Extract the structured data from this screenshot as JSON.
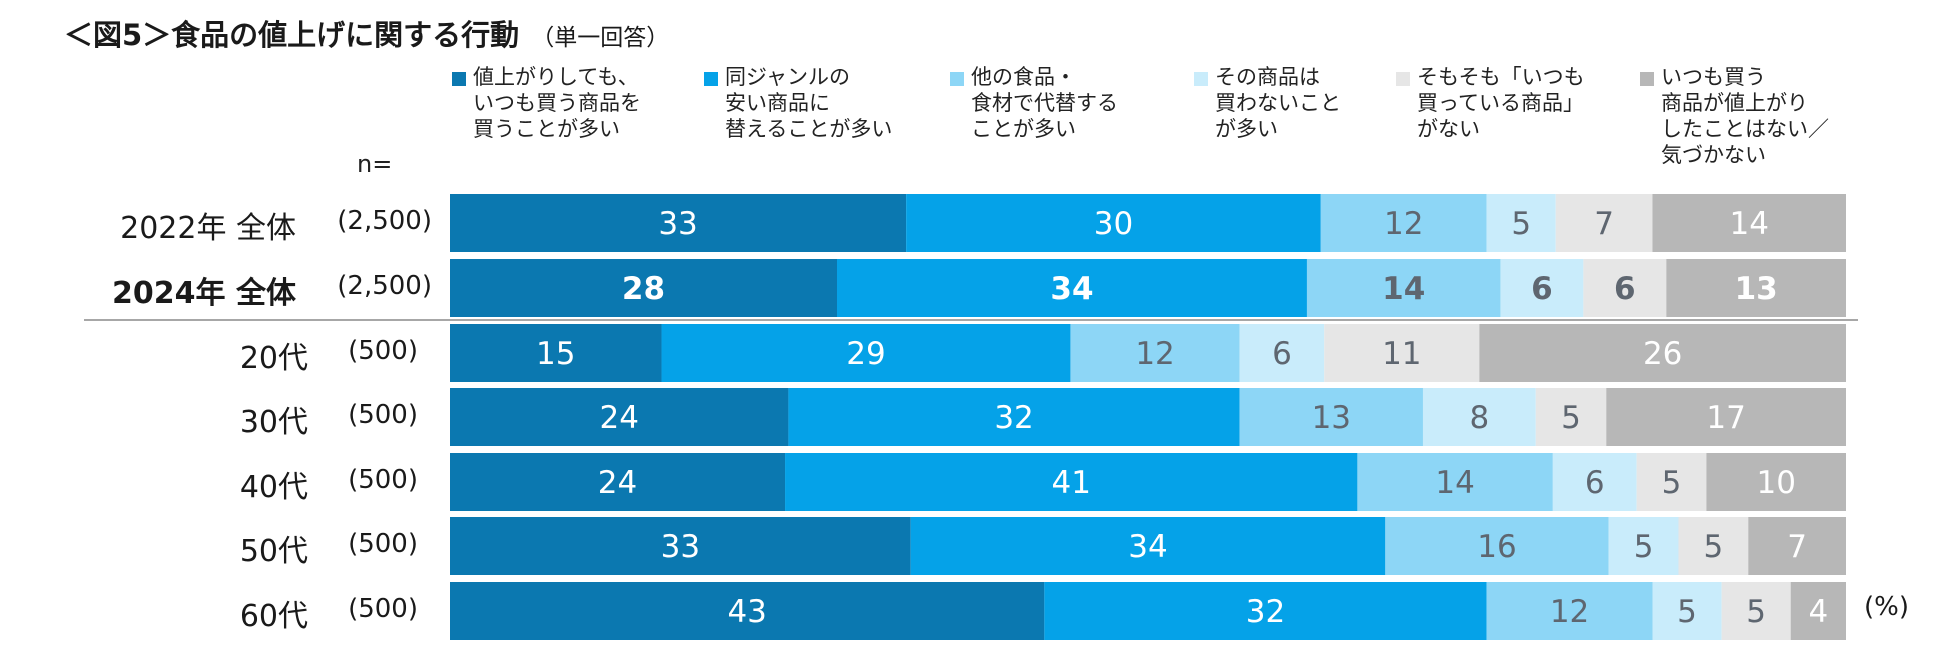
{
  "title": {
    "main": "＜図5＞食品の値上げに関する行動",
    "sub": "（単一回答）"
  },
  "n_label": "n=",
  "unit_label": "(%)",
  "chart_data": {
    "type": "bar",
    "orientation": "horizontal",
    "stacked": true,
    "normalized_to_100": true,
    "title": "＜図5＞食品の値上げに関する行動（単一回答）",
    "categories": [
      "2022年 全体",
      "2024年 全体",
      "20代",
      "30代",
      "40代",
      "50代",
      "60代"
    ],
    "sample_sizes": [
      "(2,500)",
      "(2,500)",
      "(500)",
      "(500)",
      "(500)",
      "(500)",
      "(500)"
    ],
    "highlight_row": 1,
    "separator_after_row": 1,
    "series": [
      {
        "name": "値上がりしても、\nいつも買う商品を\n買うことが多い",
        "color": "#0b78b0",
        "label_color": "#ffffff",
        "values": [
          33,
          28,
          15,
          24,
          24,
          33,
          43
        ]
      },
      {
        "name": "同ジャンルの\n安い商品に\n替えることが多い",
        "color": "#05a2e8",
        "label_color": "#ffffff",
        "values": [
          30,
          34,
          29,
          32,
          41,
          34,
          32
        ]
      },
      {
        "name": "他の食品・\n食材で代替する\nことが多い",
        "color": "#8dd6f6",
        "label_color": "#5e6670",
        "values": [
          12,
          14,
          12,
          13,
          14,
          16,
          12
        ]
      },
      {
        "name": "その商品は\n買わないこと\nが多い",
        "color": "#c9ecfb",
        "label_color": "#5e6670",
        "values": [
          5,
          6,
          6,
          8,
          6,
          5,
          5
        ]
      },
      {
        "name": "そもそも「いつも\n買っている商品」\nがない",
        "color": "#e6e6e6",
        "label_color": "#5e6670",
        "values": [
          7,
          6,
          11,
          5,
          5,
          5,
          5
        ]
      },
      {
        "name": "いつも買う\n商品が値上がり\nしたことはない／\n気づかない",
        "color": "#b7b7b7",
        "label_color": "#ffffff",
        "values": [
          14,
          13,
          26,
          17,
          10,
          7,
          4
        ]
      }
    ],
    "xlim": [
      0,
      100
    ],
    "xlabel": "",
    "ylabel": "",
    "grid": false,
    "legend": "top"
  }
}
